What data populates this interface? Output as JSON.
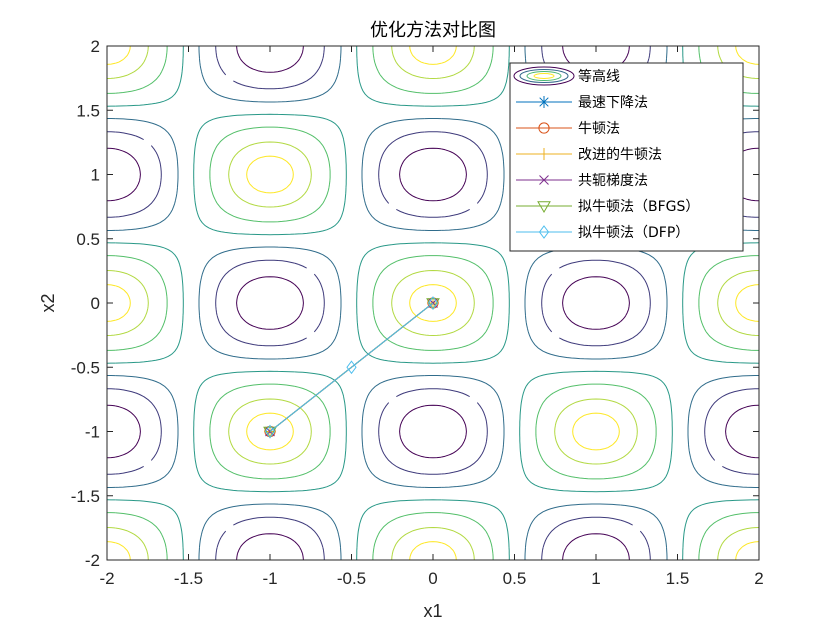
{
  "chart_data": {
    "type": "contour",
    "title": "优化方法对比图",
    "xlabel": "x1",
    "ylabel": "x2",
    "xlim": [
      -2,
      2
    ],
    "ylim": [
      -2,
      2
    ],
    "xticks": [
      "-2",
      "-1.5",
      "-1",
      "-0.5",
      "0",
      "0.5",
      "1",
      "1.5",
      "2"
    ],
    "yticks": [
      "2",
      "1.5",
      "1",
      "0.5",
      "0",
      "-0.5",
      "-1",
      "-1.5",
      "-2"
    ],
    "grid": false,
    "legend_position": "top-right",
    "contour_levels": [
      -0.8,
      -0.5,
      -0.2,
      0.1,
      0.4,
      0.7,
      0.9
    ],
    "series": [
      {
        "name": "等高线",
        "marker": "contour",
        "color": "#3b528b"
      },
      {
        "name": "最速下降法",
        "marker": "asterisk",
        "color": "#0072BD",
        "path": [
          [
            -1,
            -1
          ],
          [
            0,
            0
          ]
        ]
      },
      {
        "name": "牛顿法",
        "marker": "circle",
        "color": "#D95319",
        "path": [
          [
            -1,
            -1
          ],
          [
            0,
            0
          ]
        ]
      },
      {
        "name": "改进的牛顿法",
        "marker": "plus",
        "color": "#EDB120",
        "path": [
          [
            -1,
            -1
          ],
          [
            0,
            0
          ]
        ]
      },
      {
        "name": "共轭梯度法",
        "marker": "x",
        "color": "#7E2F8E",
        "path": [
          [
            -1,
            -1
          ],
          [
            0,
            0
          ]
        ]
      },
      {
        "name": "拟牛顿法（BFGS）",
        "marker": "triangle-down",
        "color": "#77AC30",
        "path": [
          [
            -1,
            -1
          ],
          [
            0,
            0
          ]
        ]
      },
      {
        "name": "拟牛顿法（DFP）",
        "marker": "diamond",
        "color": "#4DBEEE",
        "path": [
          [
            -1,
            -1
          ],
          [
            -0.5,
            -0.5
          ],
          [
            0,
            0
          ]
        ]
      }
    ]
  }
}
